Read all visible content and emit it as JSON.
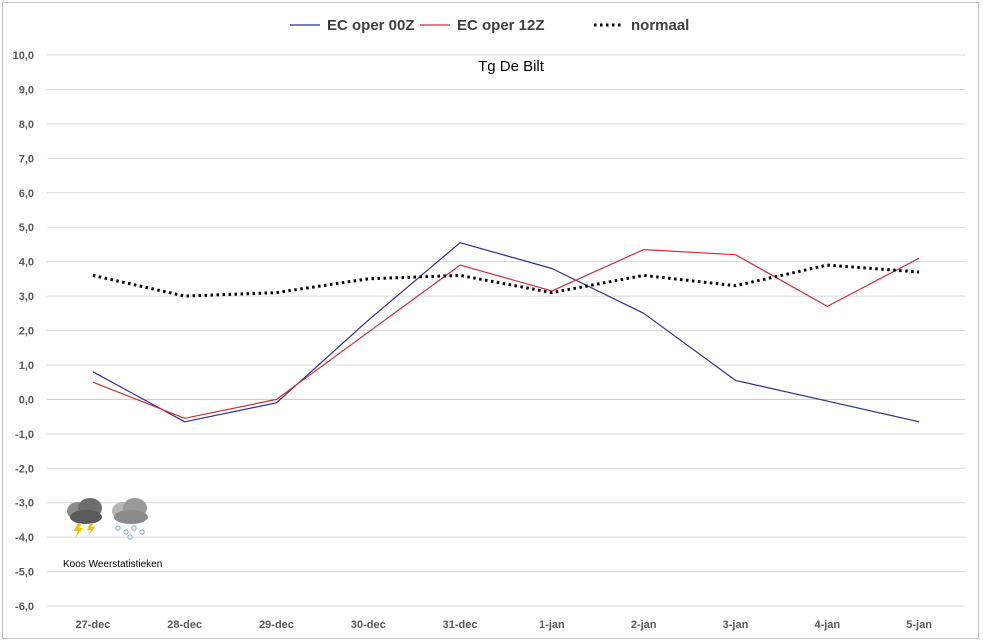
{
  "chart_data": {
    "type": "line",
    "title": "Tg De Bilt",
    "categories": [
      "27-dec",
      "28-dec",
      "29-dec",
      "30-dec",
      "31-dec",
      "1-jan",
      "2-jan",
      "3-jan",
      "4-jan",
      "5-jan"
    ],
    "ylim": [
      -6.0,
      10.0
    ],
    "ytick_step": 1.0,
    "ytick_labels": [
      "10,0",
      "9,0",
      "8,0",
      "7,0",
      "6,0",
      "5,0",
      "4,0",
      "3,0",
      "2,0",
      "1,0",
      "0,0",
      "-1,0",
      "-2,0",
      "-3,0",
      "-4,0",
      "-5,0",
      "-6,0"
    ],
    "grid": true,
    "legend_position": "top",
    "series": [
      {
        "name": "EC oper 00Z",
        "color": "#2e2e99",
        "style": "solid",
        "values": [
          0.8,
          -0.65,
          -0.1,
          2.3,
          4.55,
          3.8,
          2.5,
          0.55,
          -0.05,
          -0.65
        ]
      },
      {
        "name": "EC oper 12Z",
        "color": "#d03030",
        "style": "solid",
        "values": [
          0.5,
          -0.55,
          0.0,
          1.95,
          3.9,
          3.15,
          4.35,
          4.2,
          2.7,
          4.1
        ]
      },
      {
        "name": "normaal",
        "color": "#000000",
        "style": "dotted",
        "values": [
          3.6,
          3.0,
          3.1,
          3.5,
          3.6,
          3.1,
          3.6,
          3.3,
          3.9,
          3.7
        ]
      }
    ]
  },
  "branding": {
    "credit": "Koos Weerstatistieken",
    "icons": [
      "thunderstorm-cloud-icon",
      "hail-cloud-icon"
    ]
  }
}
